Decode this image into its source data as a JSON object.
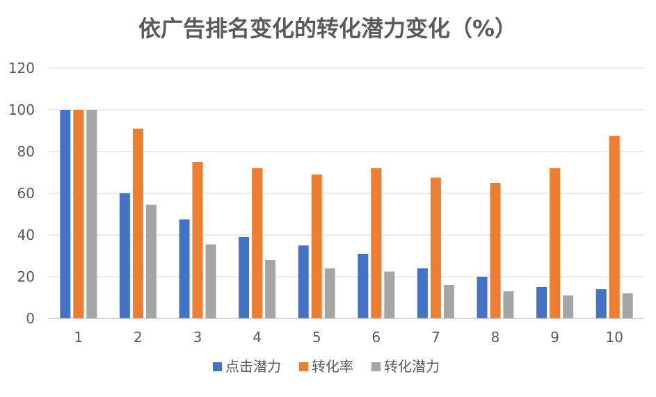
{
  "chart_data": {
    "type": "bar",
    "title": "依广告排名变化的转化潜力变化（%）",
    "xlabel": "",
    "ylabel": "",
    "categories": [
      "1",
      "2",
      "3",
      "4",
      "5",
      "6",
      "7",
      "8",
      "9",
      "10"
    ],
    "ylim": [
      0,
      120
    ],
    "yticks": [
      "0",
      "20",
      "40",
      "60",
      "80",
      "100",
      "120"
    ],
    "grid": true,
    "legend_position": "bottom",
    "series": [
      {
        "name": "点击潜力",
        "color": "#4472C4",
        "values": [
          100,
          60,
          47.5,
          39,
          35,
          31,
          24,
          20,
          15,
          14
        ]
      },
      {
        "name": "转化率",
        "color": "#ED7D31",
        "values": [
          100,
          91,
          75,
          72,
          69,
          72,
          67.5,
          65,
          72,
          87.5
        ]
      },
      {
        "name": "转化潜力",
        "color": "#A5A5A5",
        "values": [
          100,
          54.5,
          35.5,
          28,
          24,
          22.5,
          16,
          13,
          11,
          12
        ]
      }
    ]
  }
}
